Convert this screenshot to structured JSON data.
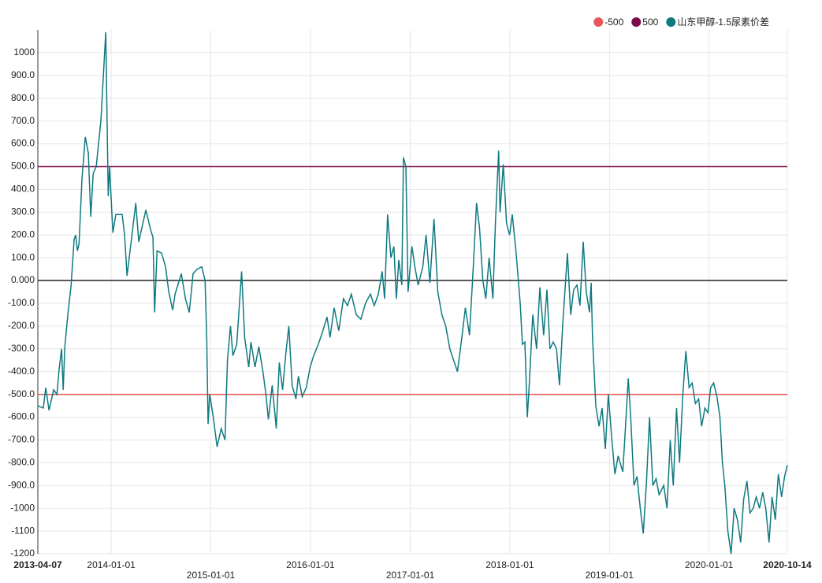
{
  "chart_data": {
    "type": "line",
    "legend": "top-right",
    "grid": true,
    "xlim": [
      "2013-04-07",
      "2020-10-14"
    ],
    "xticks": [
      "2013-04-07",
      "2014-01-01",
      "2015-01-01",
      "2016-01-01",
      "2017-01-01",
      "2018-01-01",
      "2019-01-01",
      "2020-01-01",
      "2020-10-14"
    ],
    "ylim": [
      -1200,
      1100
    ],
    "yticks": [
      -1200,
      -1100,
      -1000,
      {
        "value": -900,
        "label": "-900.0"
      },
      {
        "value": -800,
        "label": "-800.0"
      },
      {
        "value": -700,
        "label": "-700.0"
      },
      {
        "value": -600,
        "label": "-600.0"
      },
      {
        "value": -500,
        "label": "-500.0"
      },
      {
        "value": -400,
        "label": "-400.0"
      },
      {
        "value": -300,
        "label": "-300.0"
      },
      {
        "value": -200,
        "label": "-200.0"
      },
      {
        "value": -100,
        "label": "-100.0"
      },
      {
        "value": 0,
        "label": "0.000"
      },
      {
        "value": 100,
        "label": "100.0"
      },
      {
        "value": 200,
        "label": "200.0"
      },
      {
        "value": 300,
        "label": "300.0"
      },
      {
        "value": 400,
        "label": "400.0"
      },
      {
        "value": 500,
        "label": "500.0"
      },
      {
        "value": 600,
        "label": "600.0"
      },
      {
        "value": 700,
        "label": "700.0"
      },
      {
        "value": 800,
        "label": "800.0"
      },
      {
        "value": 900,
        "label": "900.0"
      },
      1000
    ],
    "x": [
      "2013-04-07",
      "2013-04-27",
      "2013-05-06",
      "2013-05-18",
      "2013-06-04",
      "2013-06-16",
      "2013-06-24",
      "2013-07-03",
      "2013-07-09",
      "2013-07-15",
      "2013-07-26",
      "2013-08-07",
      "2013-08-18",
      "2013-08-24",
      "2013-08-30",
      "2013-09-05",
      "2013-09-16",
      "2013-09-28",
      "2013-10-09",
      "2013-10-18",
      "2013-10-27",
      "2013-11-07",
      "2013-11-24",
      "2013-12-12",
      "2013-12-21",
      "2013-12-26",
      "2014-01-07",
      "2014-01-18",
      "2014-02-10",
      "2014-02-19",
      "2014-02-28",
      "2014-03-11",
      "2014-04-01",
      "2014-04-12",
      "2014-05-08",
      "2014-05-26",
      "2014-06-03",
      "2014-06-09",
      "2014-06-18",
      "2014-07-05",
      "2014-07-19",
      "2014-07-31",
      "2014-08-14",
      "2014-08-23",
      "2014-09-15",
      "2014-09-30",
      "2014-10-14",
      "2014-10-28",
      "2014-11-12",
      "2014-11-29",
      "2014-12-11",
      "2014-12-17",
      "2014-12-22",
      "2014-12-28",
      "2015-01-10",
      "2015-01-24",
      "2015-02-08",
      "2015-02-22",
      "2015-03-03",
      "2015-03-14",
      "2015-03-23",
      "2015-04-06",
      "2015-04-24",
      "2015-05-05",
      "2015-05-20",
      "2015-05-28",
      "2015-06-12",
      "2015-06-26",
      "2015-07-11",
      "2015-07-22",
      "2015-07-31",
      "2015-08-14",
      "2015-08-29",
      "2015-09-09",
      "2015-09-21",
      "2015-10-03",
      "2015-10-14",
      "2015-10-26",
      "2015-11-09",
      "2015-11-18",
      "2015-12-02",
      "2015-12-17",
      "2015-12-31",
      "2016-01-13",
      "2016-01-30",
      "2016-02-16",
      "2016-03-02",
      "2016-03-13",
      "2016-03-28",
      "2016-04-14",
      "2016-05-01",
      "2016-05-16",
      "2016-05-30",
      "2016-06-17",
      "2016-07-04",
      "2016-07-21",
      "2016-08-08",
      "2016-08-22",
      "2016-09-06",
      "2016-09-20",
      "2016-09-29",
      "2016-10-10",
      "2016-10-22",
      "2016-11-02",
      "2016-11-11",
      "2016-11-20",
      "2016-12-01",
      "2016-12-07",
      "2016-12-16",
      "2016-12-24",
      "2017-01-07",
      "2017-01-18",
      "2017-01-30",
      "2017-02-16",
      "2017-02-28",
      "2017-03-14",
      "2017-03-29",
      "2017-04-12",
      "2017-04-27",
      "2017-05-11",
      "2017-05-26",
      "2017-06-09",
      "2017-06-23",
      "2017-07-08",
      "2017-07-22",
      "2017-08-06",
      "2017-08-20",
      "2017-09-01",
      "2017-09-12",
      "2017-09-24",
      "2017-10-05",
      "2017-10-17",
      "2017-10-31",
      "2017-11-09",
      "2017-11-21",
      "2017-11-26",
      "2017-12-08",
      "2017-12-20",
      "2017-12-31",
      "2018-01-10",
      "2018-01-24",
      "2018-02-08",
      "2018-02-16",
      "2018-02-25",
      "2018-03-06",
      "2018-03-14",
      "2018-03-26",
      "2018-04-09",
      "2018-04-21",
      "2018-05-05",
      "2018-05-17",
      "2018-05-28",
      "2018-06-09",
      "2018-06-21",
      "2018-07-02",
      "2018-07-14",
      "2018-07-31",
      "2018-08-12",
      "2018-08-23",
      "2018-09-04",
      "2018-09-15",
      "2018-09-27",
      "2018-10-08",
      "2018-10-20",
      "2018-10-26",
      "2018-10-31",
      "2018-11-12",
      "2018-11-24",
      "2018-12-05",
      "2018-12-17",
      "2018-12-28",
      "2019-01-10",
      "2019-01-21",
      "2019-02-02",
      "2019-02-19",
      "2019-03-03",
      "2019-03-11",
      "2019-03-20",
      "2019-04-01",
      "2019-04-12",
      "2019-04-24",
      "2019-05-05",
      "2019-05-17",
      "2019-05-28",
      "2019-06-09",
      "2019-06-21",
      "2019-07-02",
      "2019-07-19",
      "2019-07-31",
      "2019-08-12",
      "2019-08-23",
      "2019-09-04",
      "2019-09-15",
      "2019-09-27",
      "2019-10-08",
      "2019-10-20",
      "2019-10-31",
      "2019-11-12",
      "2019-11-24",
      "2019-12-05",
      "2019-12-17",
      "2019-12-28",
      "2020-01-07",
      "2020-01-18",
      "2020-01-30",
      "2020-02-10",
      "2020-02-19",
      "2020-02-28",
      "2020-03-10",
      "2020-03-22",
      "2020-04-02",
      "2020-04-14",
      "2020-04-26",
      "2020-05-07",
      "2020-05-19",
      "2020-05-30",
      "2020-06-11",
      "2020-06-22",
      "2020-07-04",
      "2020-07-16",
      "2020-07-27",
      "2020-08-08",
      "2020-08-19",
      "2020-08-31",
      "2020-09-11",
      "2020-09-23",
      "2020-10-04",
      "2020-10-14"
    ],
    "series": [
      {
        "name": "-500",
        "color": "#e8585e",
        "x": [
          "2013-04-07",
          "2020-10-14"
        ],
        "values": [
          -500,
          -500
        ]
      },
      {
        "name": "500",
        "color": "#7a0c4c",
        "x": [
          "2013-04-07",
          "2020-10-14"
        ],
        "values": [
          500,
          500
        ]
      },
      {
        "name": "山东甲醇-1.5尿素价差",
        "color": "#0e7a80",
        "values": [
          -550,
          -560,
          -470,
          -570,
          -480,
          -500,
          -390,
          -300,
          -480,
          -290,
          -150,
          -20,
          180,
          200,
          130,
          160,
          450,
          630,
          560,
          280,
          470,
          500,
          700,
          1090,
          370,
          500,
          210,
          290,
          290,
          200,
          20,
          130,
          340,
          170,
          310,
          220,
          190,
          -140,
          130,
          120,
          60,
          -50,
          -130,
          -60,
          30,
          -80,
          -140,
          30,
          50,
          60,
          0,
          -250,
          -630,
          -500,
          -600,
          -730,
          -650,
          -700,
          -350,
          -200,
          -330,
          -280,
          40,
          -250,
          -380,
          -270,
          -380,
          -290,
          -400,
          -500,
          -610,
          -460,
          -650,
          -360,
          -480,
          -320,
          -200,
          -460,
          -520,
          -420,
          -510,
          -470,
          -380,
          -330,
          -280,
          -220,
          -160,
          -250,
          -120,
          -220,
          -80,
          -110,
          -60,
          -150,
          -170,
          -100,
          -60,
          -110,
          -60,
          40,
          -80,
          290,
          100,
          150,
          -80,
          90,
          -20,
          540,
          500,
          -50,
          150,
          60,
          -20,
          60,
          200,
          -10,
          270,
          -50,
          -150,
          -200,
          -300,
          -350,
          -400,
          -260,
          -120,
          -240,
          60,
          340,
          230,
          0,
          -80,
          100,
          -80,
          250,
          570,
          300,
          510,
          250,
          200,
          290,
          120,
          -100,
          -280,
          -270,
          -600,
          -440,
          -150,
          -300,
          -30,
          -240,
          -40,
          -300,
          -270,
          -300,
          -460,
          -190,
          120,
          -150,
          -40,
          -20,
          -110,
          170,
          -50,
          -140,
          -10,
          -250,
          -550,
          -640,
          -560,
          -740,
          -500,
          -700,
          -850,
          -770,
          -840,
          -600,
          -430,
          -600,
          -900,
          -860,
          -1000,
          -1110,
          -880,
          -600,
          -900,
          -870,
          -940,
          -900,
          -1000,
          -700,
          -900,
          -560,
          -800,
          -500,
          -310,
          -470,
          -450,
          -540,
          -520,
          -640,
          -560,
          -580,
          -470,
          -450,
          -510,
          -600,
          -800,
          -900,
          -1100,
          -1200,
          -1000,
          -1050,
          -1150,
          -960,
          -880,
          -1020,
          -1000,
          -950,
          -1000,
          -930,
          -1000,
          -1150,
          -950,
          -1050,
          -850,
          -950,
          -860,
          -810
        ]
      }
    ]
  }
}
